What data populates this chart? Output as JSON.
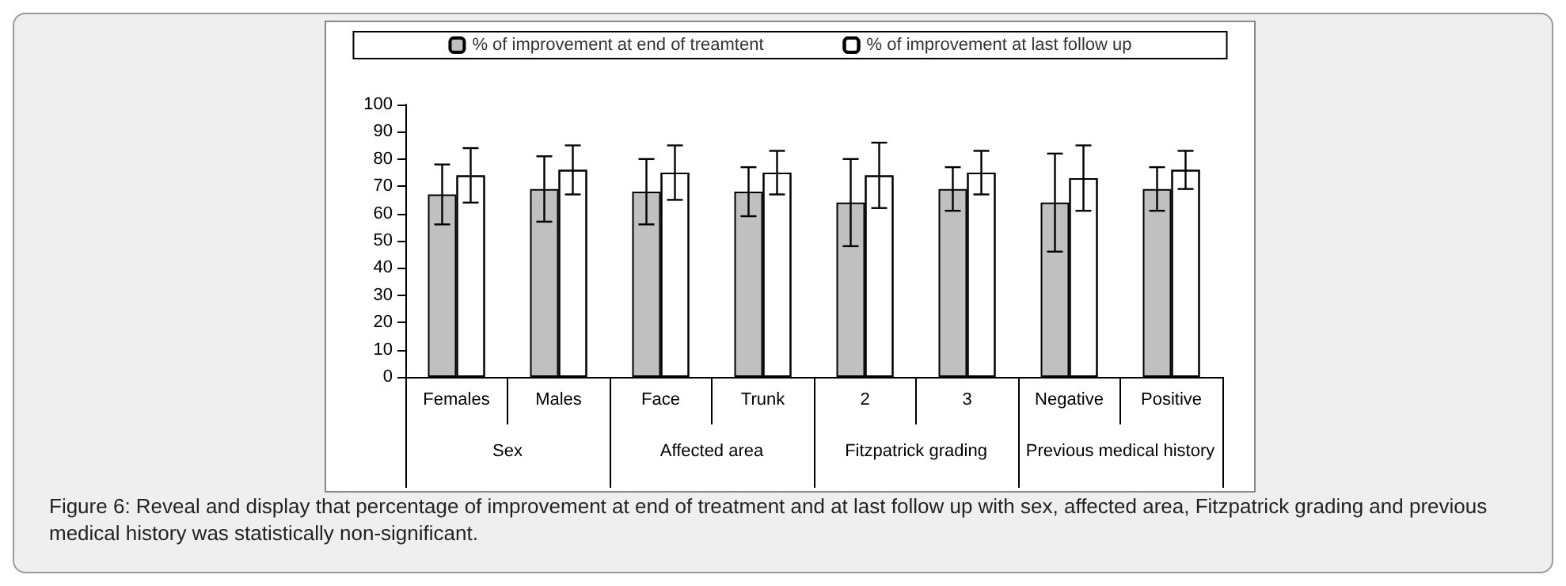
{
  "chart_data": {
    "type": "bar",
    "categories": [
      "Females",
      "Males",
      "Face",
      "Trunk",
      "2",
      "3",
      "Negative",
      "Positive"
    ],
    "series": [
      {
        "name": "% of improvement at end of treamtent",
        "color": "#c0c0c0",
        "values": [
          67,
          69,
          68,
          68,
          64,
          69,
          64,
          69
        ],
        "errors": [
          11,
          12,
          12,
          9,
          16,
          8,
          18,
          8
        ]
      },
      {
        "name": "% of improvement at last follow up",
        "color": "#ffffff",
        "values": [
          74,
          76,
          75,
          75,
          74,
          75,
          73,
          76
        ],
        "errors": [
          10,
          9,
          10,
          8,
          12,
          8,
          12,
          7
        ]
      }
    ],
    "ylim": [
      0,
      100
    ],
    "yticks": [
      0,
      10,
      20,
      30,
      40,
      50,
      60,
      70,
      80,
      90,
      100
    ],
    "grid": false,
    "legend": "top",
    "annotations": [
      "Sex",
      "Affected area",
      "Fitzpatrick grading",
      "Previous medical history",
      "Figure 6: Reveal and display that percentage of improvement at end of treatment and at last follow up with sex, affected area, Fitzpatrick grading and previous medical history was statistically non-significant."
    ]
  }
}
